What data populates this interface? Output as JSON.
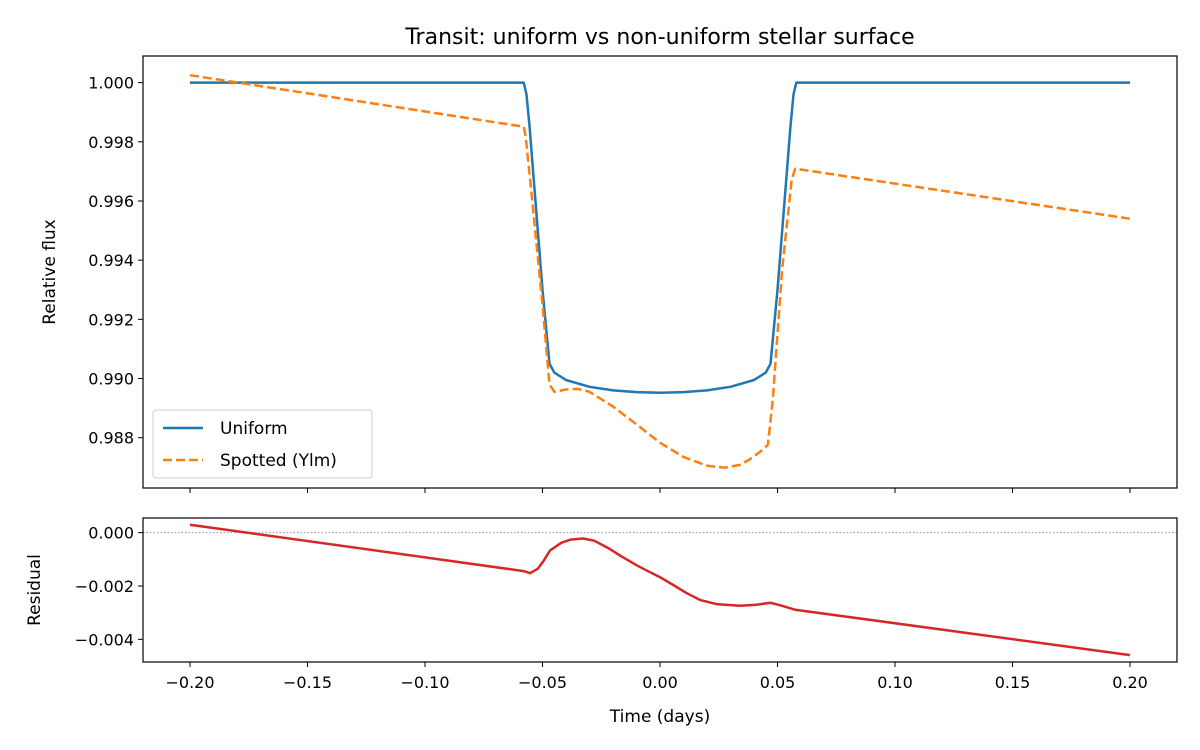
{
  "chart_data": [
    {
      "type": "line",
      "title": "Transit: uniform vs non-uniform stellar surface",
      "xlabel": "",
      "ylabel": "Relative flux",
      "xlim": [
        -0.22,
        0.22
      ],
      "ylim": [
        0.9863,
        1.0009
      ],
      "xticks": [
        "−0.20",
        "−0.15",
        "−0.10",
        "−0.05",
        "0.00",
        "0.05",
        "0.10",
        "0.15",
        "0.20"
      ],
      "xtick_values": [
        -0.2,
        -0.15,
        -0.1,
        -0.05,
        0,
        0.05,
        0.1,
        0.15,
        0.2
      ],
      "yticks": [
        "0.988",
        "0.990",
        "0.992",
        "0.994",
        "0.996",
        "0.998",
        "1.000"
      ],
      "ytick_values": [
        0.988,
        0.99,
        0.992,
        0.994,
        0.996,
        0.998,
        1.0
      ],
      "legend_position": "lower-left",
      "series": [
        {
          "name": "Uniform",
          "color": "#1f77b4",
          "style": "solid",
          "x": [
            -0.2,
            -0.058,
            -0.0568,
            -0.0555,
            -0.054,
            -0.05,
            -0.047,
            -0.045,
            -0.04,
            -0.03,
            -0.02,
            -0.01,
            0,
            0.01,
            0.02,
            0.03,
            0.04,
            0.045,
            0.047,
            0.05,
            0.054,
            0.0555,
            0.0568,
            0.058,
            0.2
          ],
          "y": [
            1.0,
            1.0,
            0.9996,
            0.9985,
            0.997,
            0.993,
            0.9905,
            0.9902,
            0.98995,
            0.98972,
            0.9896,
            0.98954,
            0.98952,
            0.98954,
            0.9896,
            0.98972,
            0.98995,
            0.9902,
            0.9905,
            0.993,
            0.997,
            0.9985,
            0.9996,
            1.0,
            1.0
          ]
        },
        {
          "name": "Spotted (Ylm)",
          "color": "#ff7f0e",
          "style": "dashed",
          "x": [
            -0.2,
            -0.058,
            -0.0572,
            -0.055,
            -0.05,
            -0.047,
            -0.045,
            -0.04,
            -0.035,
            -0.03,
            -0.02,
            -0.01,
            0,
            0.01,
            0.02,
            0.0277,
            0.034,
            0.038,
            0.043,
            0.0459,
            0.048,
            0.052,
            0.056,
            0.0575,
            0.2
          ],
          "y": [
            1.00025,
            0.99851,
            0.9982,
            0.9965,
            0.9925,
            0.9898,
            0.98955,
            0.98963,
            0.98965,
            0.98955,
            0.98905,
            0.98845,
            0.98783,
            0.98735,
            0.98705,
            0.98699,
            0.98708,
            0.98726,
            0.98755,
            0.98776,
            0.9893,
            0.9937,
            0.9967,
            0.99709,
            0.9954
          ]
        }
      ]
    },
    {
      "type": "line",
      "xlabel": "Time (days)",
      "ylabel": "Residual",
      "xlim": [
        -0.22,
        0.22
      ],
      "ylim": [
        -0.00485,
        0.00055
      ],
      "xticks": [
        "−0.20",
        "−0.15",
        "−0.10",
        "−0.05",
        "0.00",
        "0.05",
        "0.10",
        "0.15",
        "0.20"
      ],
      "xtick_values": [
        -0.2,
        -0.15,
        -0.1,
        -0.05,
        0,
        0.05,
        0.1,
        0.15,
        0.2
      ],
      "yticks": [
        "−0.004",
        "−0.002",
        "0.000"
      ],
      "ytick_values": [
        -0.004,
        -0.002,
        0.0
      ],
      "reference_line": 0.0,
      "series": [
        {
          "color": "#d62728",
          "style": "solid",
          "x": [
            -0.2,
            -0.058,
            -0.0553,
            -0.052,
            -0.0495,
            -0.0468,
            -0.042,
            -0.038,
            -0.0328,
            -0.028,
            -0.022,
            -0.017,
            -0.01,
            -0.005,
            0,
            0.006,
            0.011,
            0.017,
            0.024,
            0.034,
            0.041,
            0.047,
            0.051,
            0.0575,
            0.2
          ],
          "y": [
            0.0003,
            -0.00144,
            -0.00152,
            -0.00135,
            -0.00105,
            -0.00067,
            -0.00038,
            -0.00026,
            -0.00022,
            -0.0003,
            -0.00058,
            -0.00086,
            -0.00122,
            -0.00145,
            -0.00167,
            -0.00198,
            -0.00225,
            -0.00252,
            -0.00268,
            -0.00274,
            -0.0027,
            -0.00263,
            -0.00272,
            -0.00289,
            -0.00459
          ]
        }
      ]
    }
  ]
}
